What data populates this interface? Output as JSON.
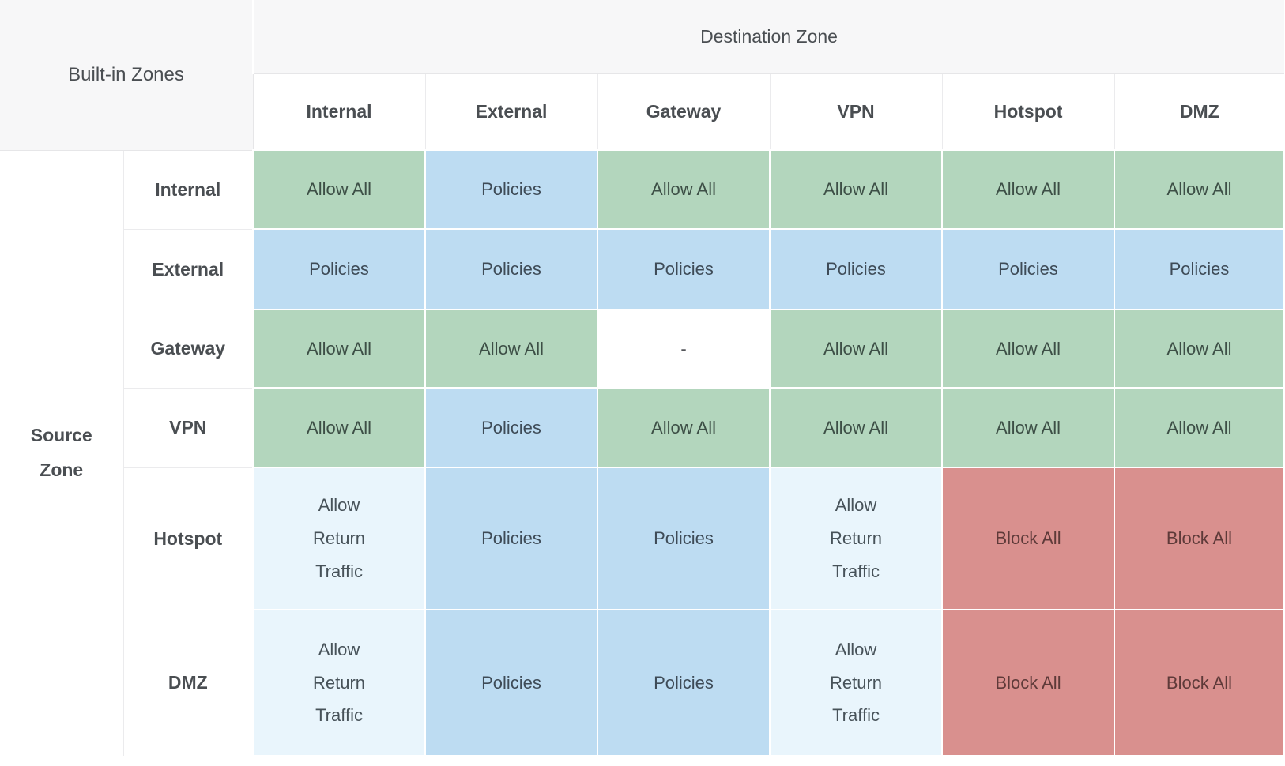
{
  "colors": {
    "header-bg": "#f7f7f8",
    "allow-bg": "#b3d6bd",
    "policies-bg": "#bddcf2",
    "return-bg": "#e9f5fc",
    "block-bg": "#d9908e",
    "header-text": "#4a4e52",
    "allow-text": "#3d4f46",
    "policies-text": "#3e4b57",
    "block-text": "#5e3a39"
  },
  "table": {
    "corner_label": "Built-in Zones",
    "destination_header": "Destination Zone",
    "source_header": "Source\nZone",
    "columns": [
      "Internal",
      "External",
      "Gateway",
      "VPN",
      "Hotspot",
      "DMZ"
    ],
    "rows": [
      {
        "label": "Internal",
        "cells": [
          {
            "text": "Allow All",
            "type": "allow"
          },
          {
            "text": "Policies",
            "type": "policies"
          },
          {
            "text": "Allow All",
            "type": "allow"
          },
          {
            "text": "Allow All",
            "type": "allow"
          },
          {
            "text": "Allow All",
            "type": "allow"
          },
          {
            "text": "Allow All",
            "type": "allow"
          }
        ]
      },
      {
        "label": "External",
        "cells": [
          {
            "text": "Policies",
            "type": "policies"
          },
          {
            "text": "Policies",
            "type": "policies"
          },
          {
            "text": "Policies",
            "type": "policies"
          },
          {
            "text": "Policies",
            "type": "policies"
          },
          {
            "text": "Policies",
            "type": "policies"
          },
          {
            "text": "Policies",
            "type": "policies"
          }
        ]
      },
      {
        "label": "Gateway",
        "cells": [
          {
            "text": "Allow All",
            "type": "allow"
          },
          {
            "text": "Allow All",
            "type": "allow"
          },
          {
            "text": "-",
            "type": "none"
          },
          {
            "text": "Allow All",
            "type": "allow"
          },
          {
            "text": "Allow All",
            "type": "allow"
          },
          {
            "text": "Allow All",
            "type": "allow"
          }
        ]
      },
      {
        "label": "VPN",
        "cells": [
          {
            "text": "Allow All",
            "type": "allow"
          },
          {
            "text": "Policies",
            "type": "policies"
          },
          {
            "text": "Allow All",
            "type": "allow"
          },
          {
            "text": "Allow All",
            "type": "allow"
          },
          {
            "text": "Allow All",
            "type": "allow"
          },
          {
            "text": "Allow All",
            "type": "allow"
          }
        ]
      },
      {
        "label": "Hotspot",
        "cells": [
          {
            "text": "Allow\nReturn\nTraffic",
            "type": "return"
          },
          {
            "text": "Policies",
            "type": "policies"
          },
          {
            "text": "Policies",
            "type": "policies"
          },
          {
            "text": "Allow\nReturn\nTraffic",
            "type": "return"
          },
          {
            "text": "Block All",
            "type": "block"
          },
          {
            "text": "Block All",
            "type": "block"
          }
        ]
      },
      {
        "label": "DMZ",
        "cells": [
          {
            "text": "Allow\nReturn\nTraffic",
            "type": "return"
          },
          {
            "text": "Policies",
            "type": "policies"
          },
          {
            "text": "Policies",
            "type": "policies"
          },
          {
            "text": "Allow\nReturn\nTraffic",
            "type": "return"
          },
          {
            "text": "Block All",
            "type": "block"
          },
          {
            "text": "Block All",
            "type": "block"
          }
        ]
      }
    ]
  }
}
